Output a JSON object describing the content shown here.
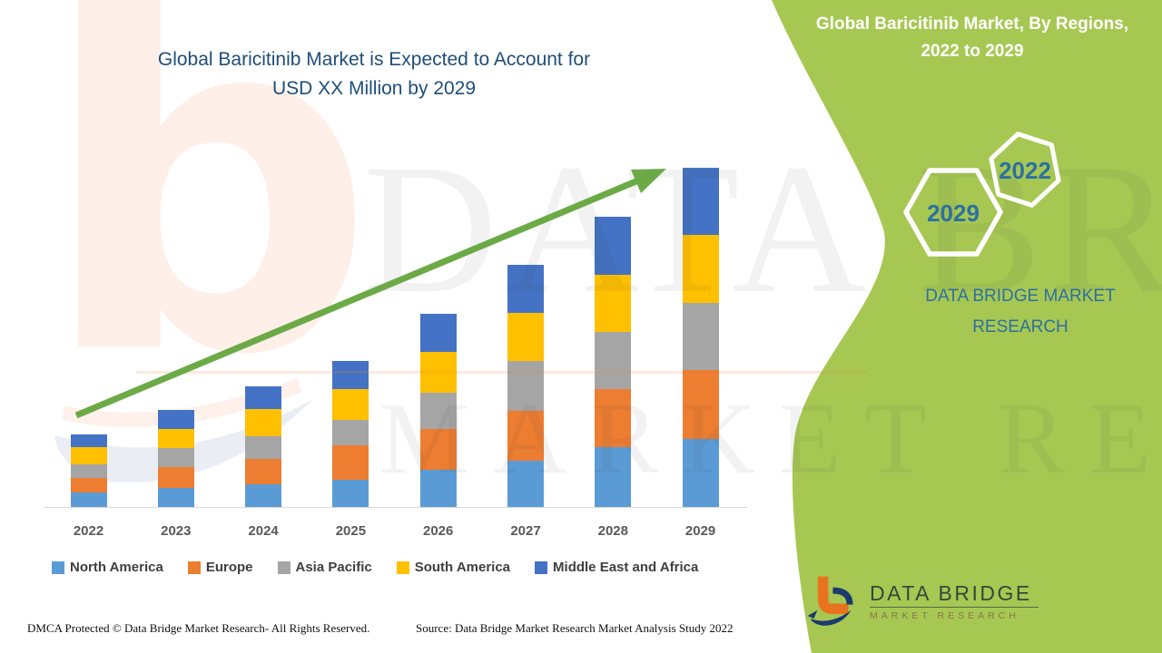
{
  "colors": {
    "green_panel": "#a6c853",
    "arrow_green": "#6caa47",
    "title_navy": "#1f4e79",
    "steel_blue_text": "#2e6fa0",
    "axis_label_gray": "#595959",
    "legend_text_gray": "#3f3f3f",
    "axis_line_gray": "#d9d9d9",
    "logo_orange": "#e8731e",
    "logo_navy": "#1c3a6b",
    "banner_text_white": "#ffffff"
  },
  "chart": {
    "title_line1": "Global Baricitinib Market is Expected to Account for",
    "title_line2": "USD XX Million by 2029"
  },
  "chart_data": {
    "type": "bar",
    "stacked": true,
    "title": "Global Baricitinib Market is Expected to Account for USD XX Million by 2029",
    "categories": [
      "2022",
      "2023",
      "2024",
      "2025",
      "2026",
      "2027",
      "2028",
      "2029"
    ],
    "series": [
      {
        "name": "North America",
        "color": "#5b9bd5",
        "values": [
          16,
          21,
          25,
          30,
          41,
          51,
          66,
          75
        ]
      },
      {
        "name": "Europe",
        "color": "#ed7d31",
        "values": [
          16,
          23,
          28,
          38,
          45,
          55,
          64,
          76
        ]
      },
      {
        "name": "Asia Pacific",
        "color": "#a5a5a5",
        "values": [
          15,
          21,
          25,
          28,
          40,
          55,
          63,
          74
        ]
      },
      {
        "name": "South America",
        "color": "#ffc000",
        "values": [
          19,
          21,
          30,
          34,
          45,
          53,
          63,
          75
        ]
      },
      {
        "name": "Middle East and Africa",
        "color": "#4472c4",
        "values": [
          14,
          21,
          25,
          31,
          42,
          53,
          64,
          74
        ]
      }
    ],
    "stack_totals": [
      80,
      107,
      133,
      161,
      213,
      267,
      320,
      374
    ],
    "units": "relative (value axis not labeled; market sized as USD XX Million)",
    "xlabel": "",
    "ylabel": "",
    "value_axis_visible": false,
    "grid": false,
    "legend_position": "bottom",
    "annotations": [
      "upward trend arrow from 2022 to 2029"
    ]
  },
  "legend": {
    "items": [
      {
        "label": "North America",
        "color": "#5b9bd5"
      },
      {
        "label": "Europe",
        "color": "#ed7d31"
      },
      {
        "label": "Asia Pacific",
        "color": "#a5a5a5"
      },
      {
        "label": "South America",
        "color": "#ffc000"
      },
      {
        "label": "Middle East and Africa",
        "color": "#4472c4"
      }
    ]
  },
  "banner": {
    "title_line1": "Global Baricitinib Market, By Regions,",
    "title_line2": "2022 to 2029",
    "hexagon_front_label": "2029",
    "hexagon_back_label": "2022",
    "brand_line1": "DATA BRIDGE MARKET",
    "brand_line2": "RESEARCH"
  },
  "watermark": {
    "letter": "b",
    "line1": "DATA BRIDGE",
    "line2": "MARKET RESEARCH"
  },
  "logo": {
    "title": "DATA BRIDGE",
    "subtitle": "MARKET RESEARCH"
  },
  "footer": {
    "dmca": "DMCA Protected © Data Bridge Market Research- All Rights Reserved.",
    "source": "Source: Data Bridge Market Research Market Analysis Study 2022"
  }
}
